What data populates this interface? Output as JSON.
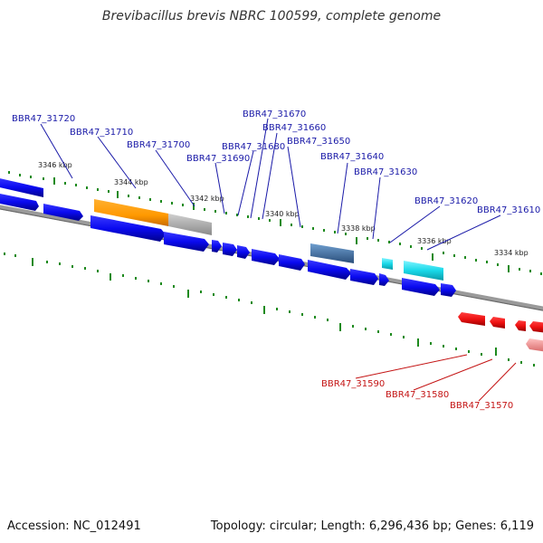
{
  "title": "Brevibacillus brevis NBRC 100599, complete genome",
  "footer": {
    "accession": "Accession: NC_012491",
    "summary": "Topology: circular; Length: 6,296,436 bp; Genes: 6,119"
  },
  "colors": {
    "plus_gene": "#0a0af0",
    "minus_gene": "#ee1111",
    "backbone": "#888888",
    "ticks": "#1e8a1e",
    "label_plus": "#1a1aa8",
    "label_minus": "#c41414",
    "highlight_orange": "#ff9900",
    "highlight_gray": "#b0b0b0",
    "highlight_steel": "#4f7fb0",
    "highlight_cyan": "#18d8e8",
    "highlight_pink": "#f09090"
  },
  "scale_labels": [
    "3346 kbp",
    "3344 kbp",
    "3342 kbp",
    "3340 kbp",
    "3338 kbp",
    "3336 kbp",
    "3334 kbp"
  ],
  "plus_gene_labels": [
    "BBR47_31720",
    "BBR47_31710",
    "BBR47_31700",
    "BBR47_31690",
    "BBR47_31680",
    "BBR47_31670",
    "BBR47_31660",
    "BBR47_31650",
    "BBR47_31640",
    "BBR47_31630",
    "BBR47_31620",
    "BBR47_31610"
  ],
  "minus_gene_labels": [
    "BBR47_31590",
    "BBR47_31580",
    "BBR47_31570"
  ]
}
